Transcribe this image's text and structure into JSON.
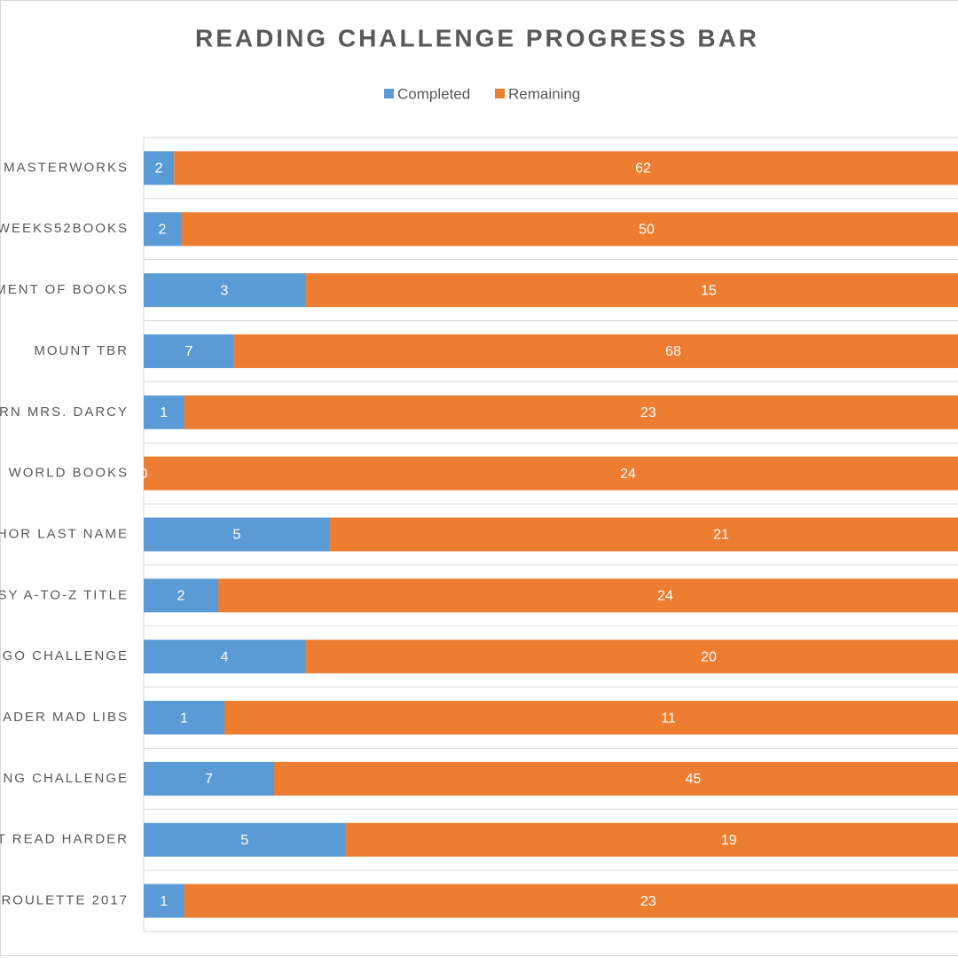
{
  "chart_data": {
    "type": "bar",
    "orientation": "horizontal",
    "stacked": "percent",
    "title": "READING CHALLENGE PROGRESS BAR",
    "legend": "top",
    "categories": [
      "MASTERWORKS",
      "WEEKS52BOOKS",
      "MENT OF BOOKS",
      "MOUNT TBR",
      "RN MRS. DARCY",
      "WORLD BOOKS",
      "HOR LAST NAME",
      "SY A-TO-Z TITLE",
      "GO CHALLENGE",
      "ADER MAD LIBS",
      "NG CHALLENGE",
      "T READ HARDER",
      "ROULETTE 2017"
    ],
    "series": [
      {
        "name": "Completed",
        "color": "#5b9bd5",
        "values": [
          2,
          2,
          3,
          7,
          1,
          0,
          5,
          2,
          4,
          1,
          7,
          5,
          1
        ]
      },
      {
        "name": "Remaining",
        "color": "#ed7d31",
        "values": [
          62,
          50,
          15,
          68,
          23,
          24,
          21,
          24,
          20,
          11,
          45,
          19,
          23
        ]
      }
    ]
  }
}
